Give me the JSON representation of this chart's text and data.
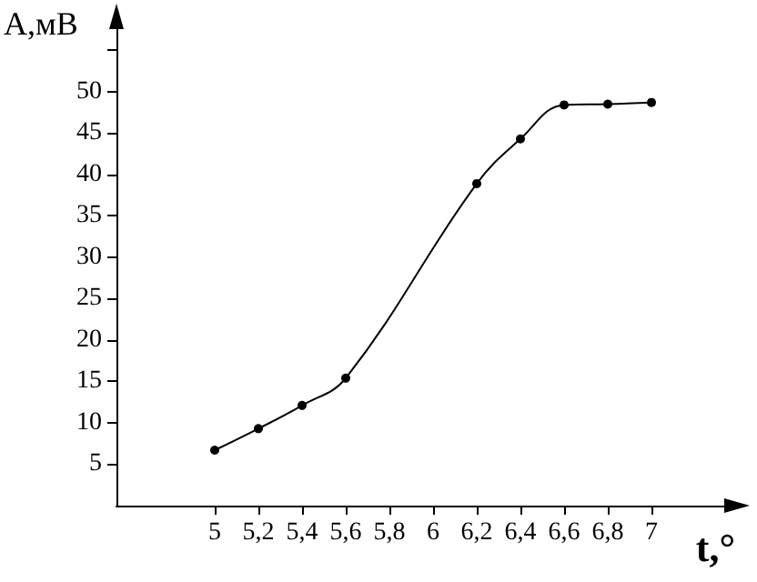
{
  "chart_data": {
    "type": "line",
    "xlabel": "t,°",
    "ylabel": "А,мВ",
    "x": [
      5,
      5.2,
      5.4,
      5.6,
      6.2,
      6.4,
      6.6,
      6.8,
      7
    ],
    "series": [
      {
        "color": "#000000",
        "values": [
          6.7,
          9.3,
          12.1,
          15.4,
          38.9,
          44.3,
          48.4,
          48.5,
          48.7
        ]
      }
    ],
    "xlim": [
      4.55,
      7.35
    ],
    "xticks": [
      5,
      {
        "value": 5.2,
        "label": "5,2"
      },
      {
        "value": 5.4,
        "label": "5,4"
      },
      {
        "value": 5.6,
        "label": "5,6"
      },
      {
        "value": 5.8,
        "label": "5,8"
      },
      6,
      {
        "value": 6.2,
        "label": "6,2"
      },
      {
        "value": 6.4,
        "label": "6,4"
      },
      {
        "value": 6.6,
        "label": "6,6"
      },
      {
        "value": 6.8,
        "label": "6,8"
      },
      7
    ],
    "ylim": [
      0,
      58
    ],
    "yticks": [
      5,
      10,
      15,
      20,
      25,
      30,
      35,
      40,
      45,
      50,
      {
        "value": 55,
        "label": null
      }
    ],
    "grid": false,
    "marker": "circle",
    "line_style": "solid"
  }
}
